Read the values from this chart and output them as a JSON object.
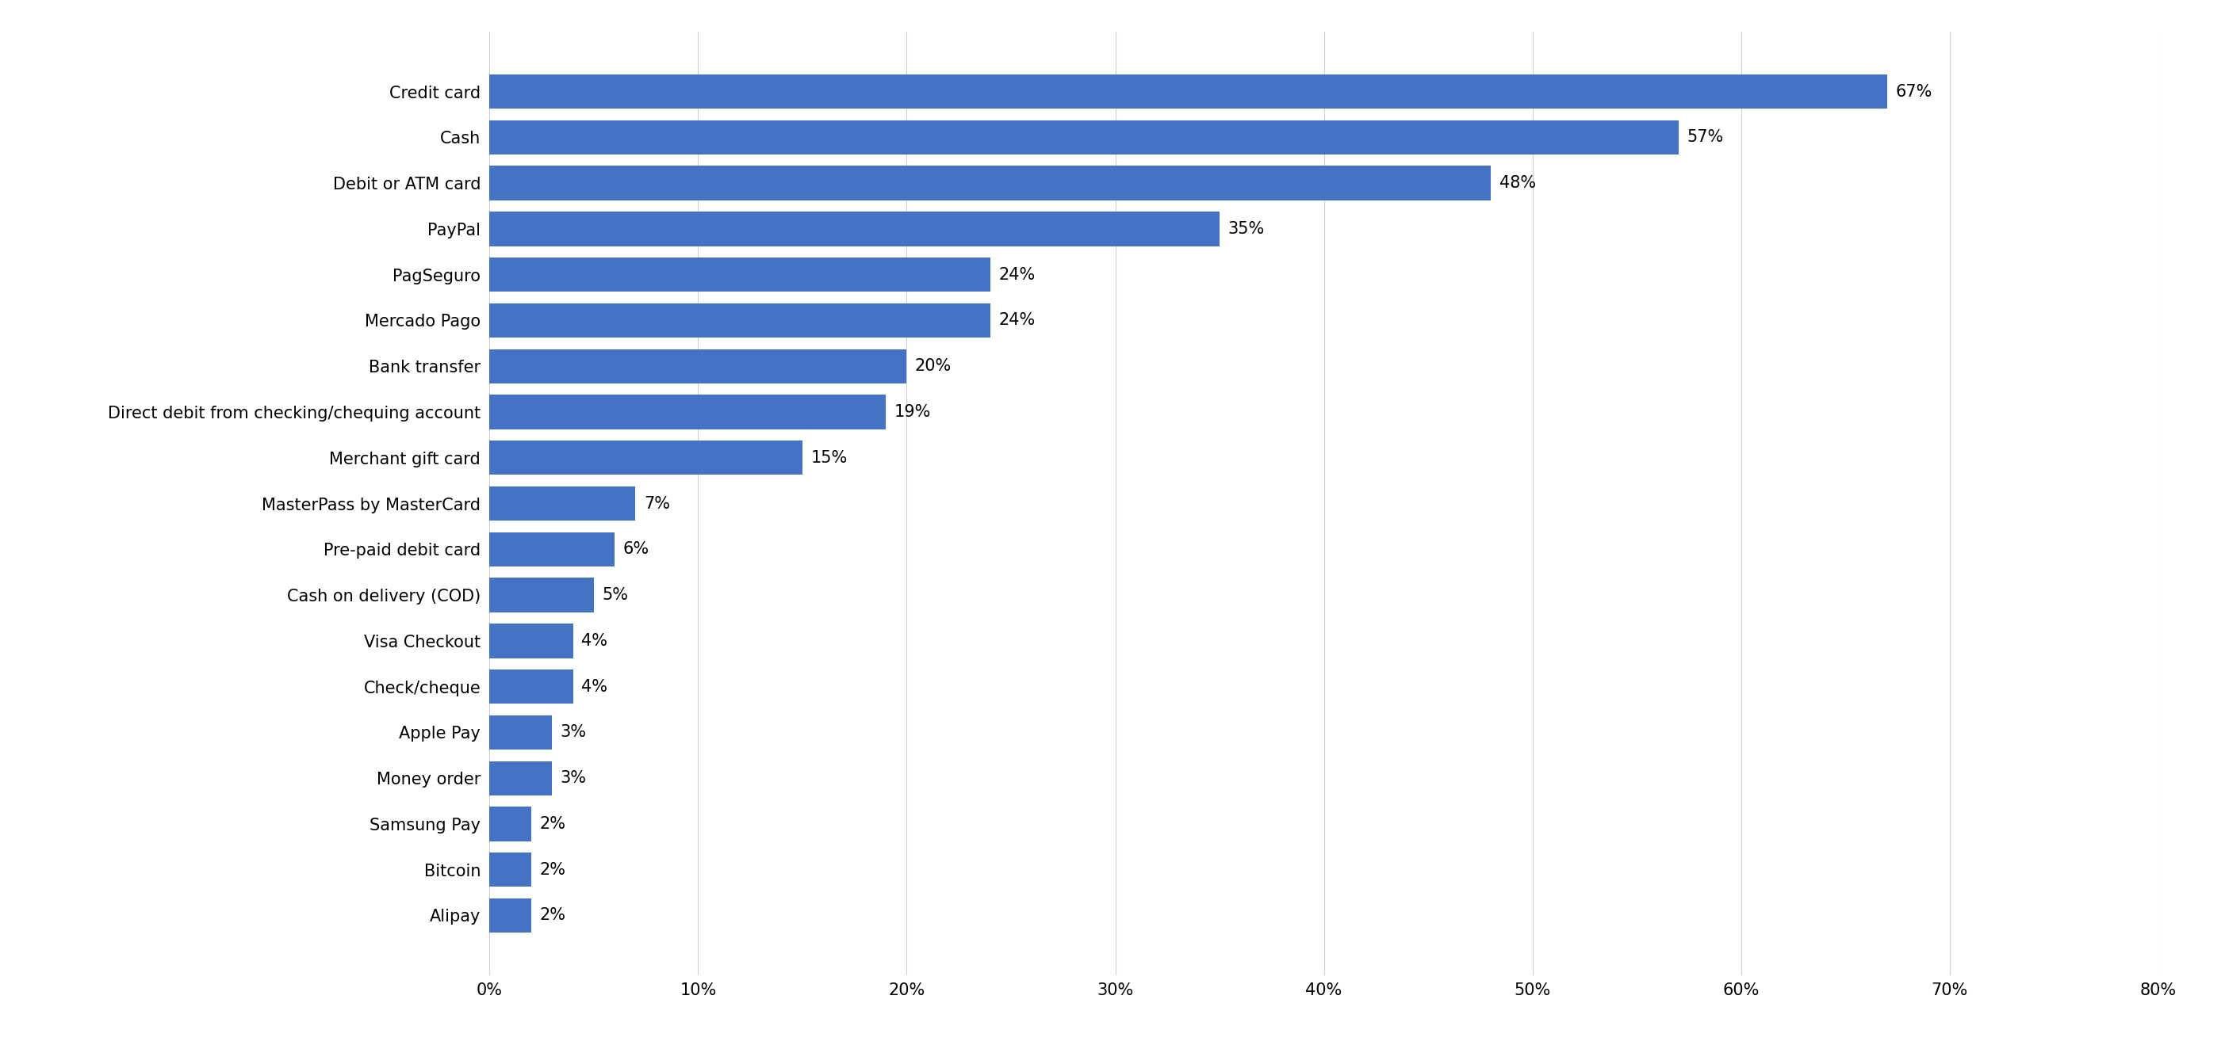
{
  "categories": [
    "Alipay",
    "Bitcoin",
    "Samsung Pay",
    "Money order",
    "Apple Pay",
    "Check/cheque",
    "Visa Checkout",
    "Cash on delivery (COD)",
    "Pre-paid debit card",
    "MasterPass by MasterCard",
    "Merchant gift card",
    "Direct debit from checking/chequing account",
    "Bank transfer",
    "Mercado Pago",
    "PagSeguro",
    "PayPal",
    "Debit or ATM card",
    "Cash",
    "Credit card"
  ],
  "values": [
    2,
    2,
    2,
    3,
    3,
    4,
    4,
    5,
    6,
    7,
    15,
    19,
    20,
    24,
    24,
    35,
    48,
    57,
    67
  ],
  "bar_color": "#4472C4",
  "background_color": "#ffffff",
  "xlim": [
    0,
    80
  ],
  "xticks": [
    0,
    10,
    20,
    30,
    40,
    50,
    60,
    70,
    80
  ],
  "xlabel": "",
  "ylabel": "",
  "value_label_fontsize": 15,
  "ytick_fontsize": 15,
  "xtick_fontsize": 15,
  "grid_color": "#d0d0d0",
  "bar_height": 0.75
}
